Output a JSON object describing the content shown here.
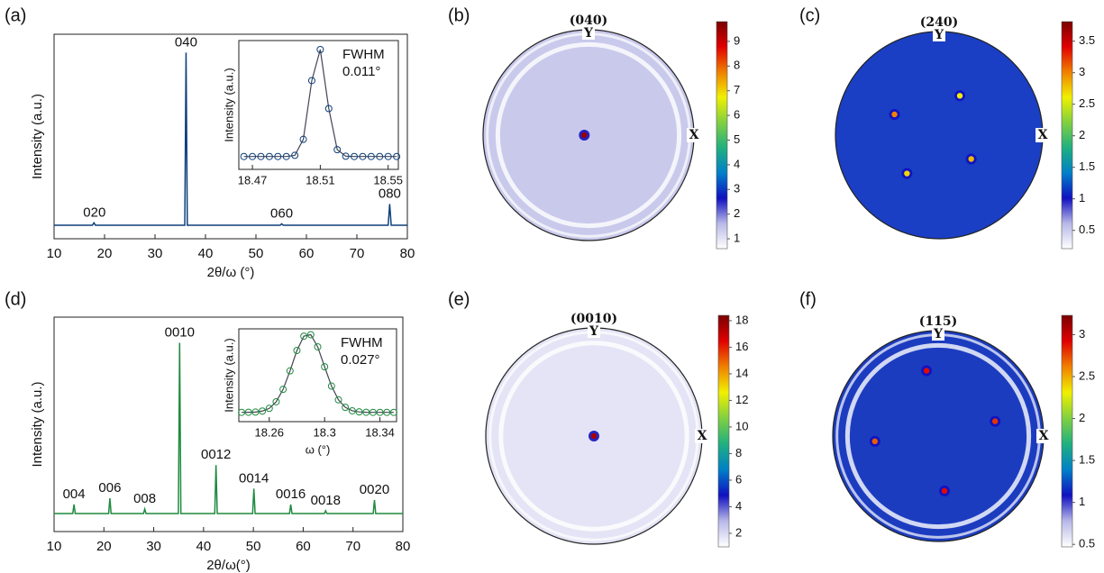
{
  "chart_data": [
    {
      "type": "line",
      "label": "(a)",
      "color": "#0d3f7a",
      "x": [
        10,
        17.6,
        17.9,
        18.2,
        35.9,
        36.15,
        36.4,
        54.8,
        55.1,
        55.4,
        76.2,
        76.5,
        76.8,
        80
      ],
      "values": [
        6.6,
        6.6,
        7.8,
        6.6,
        6.6,
        91,
        6.6,
        6.6,
        7.3,
        6.6,
        6.6,
        17,
        6.6,
        6.6
      ],
      "xlim": [
        10,
        80
      ],
      "xticks": [
        10,
        20,
        30,
        40,
        50,
        60,
        70,
        80
      ],
      "ylim": [
        0,
        100
      ],
      "xlabel": "2θ/ω (°)",
      "ylabel": "Intensity (a.u.)",
      "peak_labels": [
        {
          "text": "020",
          "x": 18
        },
        {
          "text": "040",
          "x": 36.15
        },
        {
          "text": "060",
          "x": 55.1
        },
        {
          "text": "080",
          "x": 76.5
        }
      ],
      "inset": {
        "x": [
          18.465,
          18.47,
          18.475,
          18.48,
          18.485,
          18.49,
          18.495,
          18.5,
          18.505,
          18.51,
          18.515,
          18.52,
          18.525,
          18.53,
          18.535,
          18.54,
          18.545,
          18.55,
          18.555
        ],
        "values": [
          10,
          10,
          10,
          10,
          10,
          10,
          10.9,
          23.3,
          68.9,
          93,
          47.2,
          15.3,
          10.2,
          10,
          10,
          10,
          10,
          10,
          10
        ],
        "xlim": [
          18.462,
          18.556
        ],
        "xticks": [
          18.47,
          18.51,
          18.55
        ],
        "ylim": [
          0,
          100
        ],
        "ylabel": "Intensity (a.u.)",
        "notes": [
          "FWHM",
          "0.011°"
        ]
      }
    },
    {
      "type": "pole",
      "label": "(b)",
      "title": "(040)",
      "axis_x": "X",
      "axis_y": "Y",
      "disc_color": "#c9c9ec",
      "ring": true,
      "spots": {
        "x": [
          -0.04
        ],
        "y": [
          0
        ],
        "values": [
          9.5
        ]
      },
      "colorbar": {
        "lim": [
          0.6,
          9.8
        ],
        "ticks": [
          1,
          2,
          3,
          4,
          5,
          6,
          7,
          8,
          9
        ]
      }
    },
    {
      "type": "pole",
      "label": "(c)",
      "title": "(240)",
      "axis_x": "X",
      "axis_y": "Y",
      "disc_color": "#1a3fc4",
      "ring": false,
      "spots": {
        "x": [
          -0.43,
          0.2,
          -0.31,
          0.31
        ],
        "y": [
          0.2,
          0.38,
          -0.37,
          -0.23
        ],
        "values": [
          3,
          2.6,
          2.7,
          2.8
        ]
      },
      "colorbar": {
        "lim": [
          0.21,
          3.81
        ],
        "ticks": [
          0.5,
          1,
          1.5,
          2,
          2.5,
          3,
          3.5
        ]
      }
    },
    {
      "type": "line",
      "label": "(d)",
      "color": "#1f8a3f",
      "x": [
        10,
        13.75,
        14,
        14.25,
        20.95,
        21.2,
        21.45,
        27.95,
        28.2,
        28.45,
        34.95,
        35.2,
        35.45,
        42.25,
        42.5,
        42.75,
        49.85,
        50.1,
        50.35,
        57.25,
        57.5,
        57.75,
        64.25,
        64.5,
        64.75,
        74.05,
        74.3,
        74.55,
        80
      ],
      "values": [
        8.4,
        8.4,
        12.6,
        8.4,
        8.4,
        15.5,
        8.4,
        8.4,
        10.5,
        8.4,
        8.4,
        88,
        8.4,
        8.4,
        31,
        8.4,
        8.4,
        20,
        8.4,
        8.4,
        12.6,
        8.4,
        8.4,
        9.7,
        8.4,
        8.4,
        14.7,
        8.4,
        8.4
      ],
      "xlim": [
        10,
        80
      ],
      "xticks": [
        10,
        20,
        30,
        40,
        50,
        60,
        70,
        80
      ],
      "ylim": [
        0,
        100
      ],
      "xlabel": "2θ/ω(°)",
      "ylabel": "Intensity (a.u.)",
      "peak_labels": [
        {
          "text": "004",
          "x": 14
        },
        {
          "text": "006",
          "x": 21.2
        },
        {
          "text": "008",
          "x": 28.2
        },
        {
          "text": "0010",
          "x": 35.2
        },
        {
          "text": "0012",
          "x": 42.5
        },
        {
          "text": "0014",
          "x": 50.1
        },
        {
          "text": "0016",
          "x": 57.5
        },
        {
          "text": "0018",
          "x": 64.5
        },
        {
          "text": "0020",
          "x": 74.3
        }
      ],
      "inset": {
        "x": [
          18.24,
          18.245,
          18.25,
          18.255,
          18.26,
          18.265,
          18.27,
          18.275,
          18.28,
          18.285,
          18.29,
          18.295,
          18.3,
          18.305,
          18.31,
          18.315,
          18.32,
          18.325,
          18.33,
          18.335,
          18.34,
          18.345,
          18.35
        ],
        "values": [
          10,
          10.1,
          10.3,
          11.4,
          14.3,
          21.4,
          34.8,
          54.7,
          76.7,
          92.1,
          93.7,
          80.6,
          59.1,
          38.3,
          23.5,
          15.4,
          11.7,
          10.5,
          10.1,
          10,
          10,
          10,
          10
        ],
        "xlim": [
          18.238,
          18.352
        ],
        "xticks": [
          18.26,
          18.3,
          18.34
        ],
        "ylim": [
          0,
          100
        ],
        "ylabel": "Intensity (a.u.)",
        "xlabel": "ω (°)",
        "notes": [
          "FWHM",
          "0.027°"
        ]
      }
    },
    {
      "type": "pole",
      "label": "(e)",
      "title": "(0010)",
      "axis_x": "X",
      "axis_y": "Y",
      "disc_color": "#e4e4f6",
      "ring": true,
      "spots": {
        "x": [
          0
        ],
        "y": [
          0
        ],
        "values": [
          17.5
        ]
      },
      "colorbar": {
        "lim": [
          0.98,
          18.4
        ],
        "ticks": [
          2,
          4,
          6,
          8,
          10,
          12,
          14,
          16,
          18
        ]
      }
    },
    {
      "type": "pole",
      "label": "(f)",
      "title": "(115)",
      "axis_x": "X",
      "axis_y": "Y",
      "disc_color": "#1c3cc0",
      "ring": true,
      "spots": {
        "x": [
          -0.11,
          0.54,
          -0.6,
          0.06
        ],
        "y": [
          0.62,
          0.14,
          -0.05,
          -0.52
        ],
        "values": [
          2.9,
          2.8,
          2.7,
          2.9
        ]
      },
      "colorbar": {
        "lim": [
          0.47,
          3.23
        ],
        "ticks": [
          0.5,
          1,
          1.5,
          2,
          2.5,
          3
        ]
      }
    }
  ]
}
